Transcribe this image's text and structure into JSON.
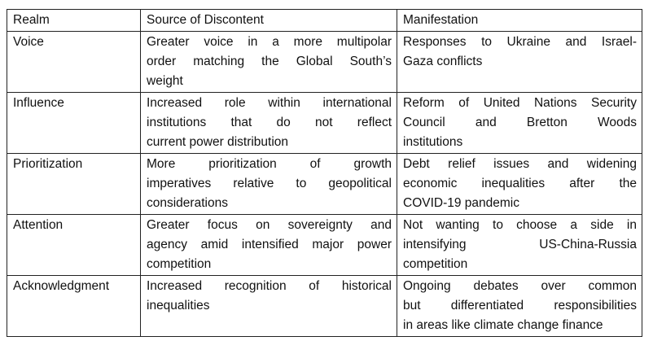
{
  "headers": [
    "Realm",
    "Source of Discontent",
    "Manifestation"
  ],
  "rows": [
    {
      "realm": "Voice",
      "source": [
        "Greater voice in a more multipolar",
        "order matching the Global South’s",
        "weight"
      ],
      "manifestation": [
        "Responses to Ukraine and Israel-",
        "Gaza conflicts"
      ]
    },
    {
      "realm": "Influence",
      "source": [
        "Increased role within international",
        "institutions that do not reflect",
        "current power distribution"
      ],
      "manifestation": [
        "Reform of United Nations Security",
        "Council and Bretton Woods",
        "institutions"
      ]
    },
    {
      "realm": "Prioritization",
      "source": [
        "More prioritization of growth",
        "imperatives relative to geopolitical",
        "considerations"
      ],
      "manifestation": [
        "Debt relief issues and widening",
        "economic inequalities after the",
        "COVID-19 pandemic"
      ]
    },
    {
      "realm": "Attention",
      "source": [
        "Greater focus on sovereignty and",
        "agency amid intensified major power",
        "competition"
      ],
      "manifestation": [
        "Not wanting to choose a side in",
        "intensifying US-China-Russia",
        "competition"
      ]
    },
    {
      "realm": "Acknowledgment",
      "source": [
        "Increased recognition of historical",
        "inequalities"
      ],
      "manifestation": [
        "Ongoing debates over common",
        "but differentiated responsibilities",
        "in areas like climate change finance"
      ]
    }
  ]
}
